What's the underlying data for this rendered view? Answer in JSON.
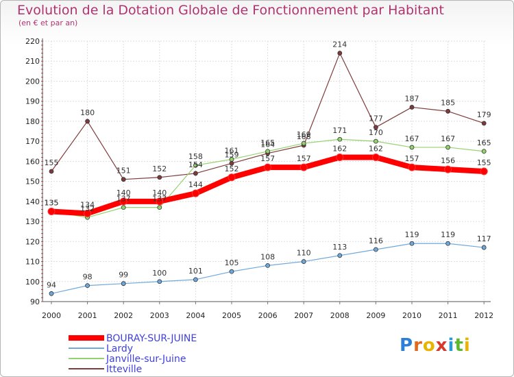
{
  "header": {
    "title": "Evolution de la Dotation Globale de Fonctionnement par Habitant",
    "subtitle": "(en € et par an)"
  },
  "logo": {
    "letters": [
      "P",
      "r",
      "o",
      "x",
      "i",
      "t",
      "i"
    ],
    "colors": [
      "#2b7fd6",
      "#e0691b",
      "#e8b400",
      "#d63a2b",
      "#2b9bd6",
      "#5cb82e",
      "#e8b400"
    ]
  },
  "chart_data": {
    "type": "line",
    "title": "Evolution de la Dotation Globale de Fonctionnement par Habitant",
    "subtitle": "(en € et par an)",
    "x": [
      "2000",
      "2001",
      "2002",
      "2003",
      "2004",
      "2005",
      "2006",
      "2007",
      "2008",
      "2009",
      "2010",
      "2011",
      "2012"
    ],
    "ylim": [
      90,
      220
    ],
    "yticks": [
      90,
      100,
      110,
      120,
      130,
      140,
      150,
      160,
      170,
      180,
      190,
      200,
      210,
      220
    ],
    "legend_position": "bottom-left",
    "series": [
      {
        "name": "BOURAY-SUR-JUINE",
        "color": "#ff0000",
        "values": [
          135,
          134,
          140,
          140,
          144,
          152,
          157,
          157,
          162,
          162,
          157,
          156,
          155
        ]
      },
      {
        "name": "Lardy",
        "color": "#6fa8dc",
        "values": [
          94,
          98,
          99,
          100,
          101,
          105,
          108,
          110,
          113,
          116,
          119,
          119,
          117
        ]
      },
      {
        "name": "Janville-sur-Juine",
        "color": "#93d26e",
        "values": [
          135,
          132,
          137,
          137,
          158,
          161,
          165,
          169,
          171,
          170,
          167,
          167,
          165
        ]
      },
      {
        "name": "Itteville",
        "color": "#7f3b3b",
        "values": [
          155,
          180,
          151,
          152,
          154,
          159,
          164,
          168,
          214,
          177,
          187,
          185,
          179
        ]
      }
    ]
  }
}
